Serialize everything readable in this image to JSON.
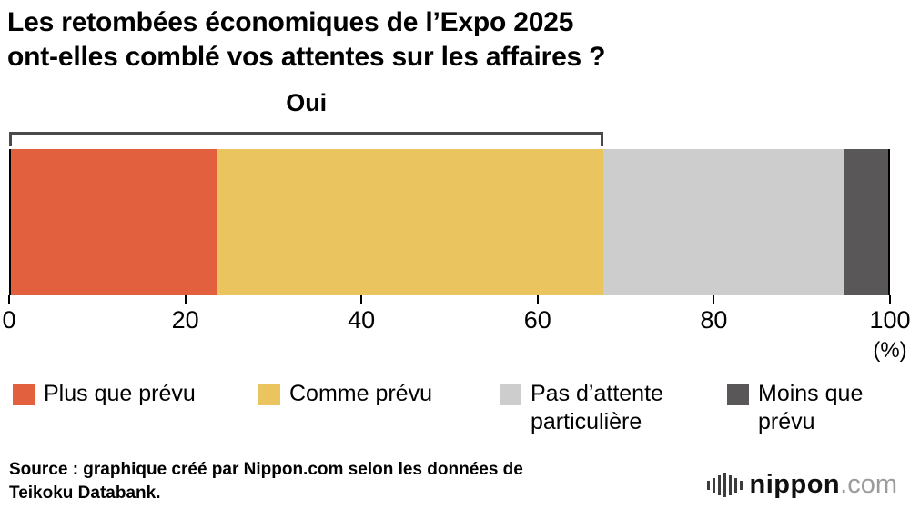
{
  "title": {
    "line1": "Les retombées économiques de l’Expo 2025",
    "line2": "ont-elles comblé vos attentes sur les affaires ?"
  },
  "chart_data": {
    "type": "bar",
    "subtype": "horizontal-stacked",
    "title": "Les retombées économiques de l’Expo 2025 ont-elles comblé vos attentes sur les affaires ?",
    "series": [
      {
        "name": "Plus que prévu",
        "value": 23.5,
        "color": "#E2603E"
      },
      {
        "name": "Comme prévu",
        "value": 44.0,
        "color": "#EAC45E"
      },
      {
        "name": "Pas d’attente particulière",
        "value": 27.4,
        "color": "#CDCDCD"
      },
      {
        "name": "Moins que prévu",
        "value": 5.1,
        "color": "#595757"
      }
    ],
    "bracket": {
      "label": "Oui",
      "from": 0,
      "to": 67.5
    },
    "x_ticks": [
      "0",
      "20",
      "40",
      "60",
      "80",
      "100"
    ],
    "x_tick_values": [
      0,
      20,
      40,
      60,
      80,
      100
    ],
    "x_unit": "(%)",
    "xlim": [
      0,
      100
    ],
    "legend_position": "bottom"
  },
  "source": {
    "line1": "Source : graphique créé par Nippon.com selon les données de",
    "line2": "Teikoku Databank."
  },
  "logo": {
    "name": "nippon",
    "tld": ".com"
  }
}
